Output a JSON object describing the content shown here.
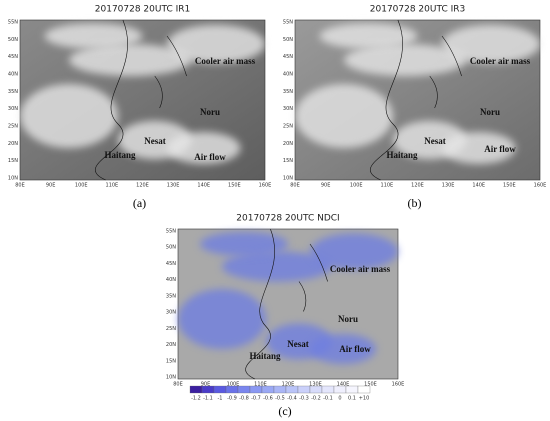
{
  "panels": [
    {
      "title": "20170728 20UTC IR1",
      "caption": "(a)",
      "lat_labels": [
        "55N",
        "50N",
        "45N",
        "40N",
        "35N",
        "30N",
        "25N",
        "20N",
        "15N",
        "10N"
      ],
      "lon_labels": [
        "80E",
        "90E",
        "100E",
        "110E",
        "120E",
        "130E",
        "140E",
        "150E",
        "160E"
      ],
      "annotations": [
        "Cooler air mass",
        "Noru",
        "Nesat",
        "Haitang",
        "Air flow"
      ]
    },
    {
      "title": "20170728 20UTC IR3",
      "caption": "(b)",
      "lat_labels": [
        "55N",
        "50N",
        "45N",
        "40N",
        "35N",
        "30N",
        "25N",
        "20N",
        "15N",
        "10N"
      ],
      "lon_labels": [
        "80E",
        "90E",
        "100E",
        "110E",
        "120E",
        "130E",
        "140E",
        "150E",
        "160E"
      ],
      "annotations": [
        "Cooler air mass",
        "Noru",
        "Nesat",
        "Haitang",
        "Air flow"
      ]
    },
    {
      "title": "20170728 20UTC NDCI",
      "caption": "(c)",
      "lat_labels": [
        "55N",
        "50N",
        "45N",
        "40N",
        "35N",
        "30N",
        "25N",
        "20N",
        "15N",
        "10N"
      ],
      "lon_labels": [
        "80E",
        "90E",
        "100E",
        "110E",
        "120E",
        "130E",
        "140E",
        "150E",
        "160E"
      ],
      "annotations": [
        "Cooler air mass",
        "Noru",
        "Nesat",
        "Haitang",
        "Air flow"
      ],
      "colorbar": [
        "-1.2",
        "-1.1",
        "-1",
        "-0.9",
        "-0.8",
        "-0.7",
        "-0.6",
        "-0.5",
        "-0.4",
        "-0.3",
        "-0.2",
        "-0.1",
        "0",
        "0.1",
        "+10"
      ]
    }
  ]
}
